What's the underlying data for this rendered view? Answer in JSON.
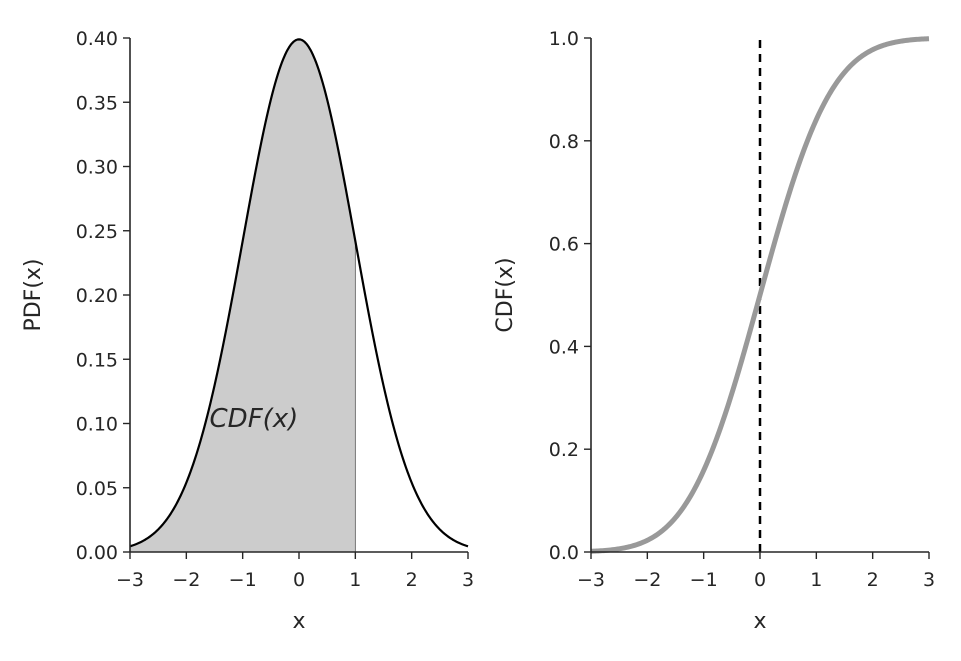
{
  "chart_data": [
    {
      "type": "area",
      "title": "",
      "xlabel": "x",
      "ylabel": "PDF(x)",
      "xlim": [
        -3,
        3
      ],
      "ylim": [
        0,
        0.4
      ],
      "xticks": [
        -3,
        -2,
        -1,
        0,
        1,
        2,
        3
      ],
      "xtick_labels": [
        "−3",
        "−2",
        "−1",
        "0",
        "1",
        "2",
        "3"
      ],
      "yticks": [
        0,
        0.05,
        0.1,
        0.15,
        0.2,
        0.25,
        0.3,
        0.35,
        0.4
      ],
      "ytick_labels": [
        "0.00",
        "0.05",
        "0.10",
        "0.15",
        "0.20",
        "0.25",
        "0.30",
        "0.35",
        "0.40"
      ],
      "grid": false,
      "series": [
        {
          "x": [
            -3,
            -2.5,
            -2,
            -1.5,
            -1,
            -0.5,
            0,
            0.5,
            1,
            1.5,
            2,
            2.5,
            3
          ],
          "y": [
            0.0044,
            0.0175,
            0.054,
            0.1295,
            0.242,
            0.3521,
            0.3989,
            0.3521,
            0.242,
            0.1295,
            0.054,
            0.0175,
            0.0044
          ],
          "color": "#000000"
        }
      ],
      "shaded_region": {
        "x_from": -3,
        "x_to": 1,
        "color": "#cccccc"
      },
      "annotation": {
        "text": "CDF(x)",
        "x": -0.8,
        "y": 0.105
      }
    },
    {
      "type": "line",
      "title": "",
      "xlabel": "x",
      "ylabel": "CDF(x)",
      "xlim": [
        -3,
        3
      ],
      "ylim": [
        0,
        1
      ],
      "xticks": [
        -3,
        -2,
        -1,
        0,
        1,
        2,
        3
      ],
      "xtick_labels": [
        "−3",
        "−2",
        "−1",
        "0",
        "1",
        "2",
        "3"
      ],
      "yticks": [
        0,
        0.2,
        0.4,
        0.6,
        0.8,
        1.0
      ],
      "ytick_labels": [
        "0.0",
        "0.2",
        "0.4",
        "0.6",
        "0.8",
        "1.0"
      ],
      "grid": false,
      "series": [
        {
          "x": [
            -3,
            -2.5,
            -2,
            -1.5,
            -1,
            -0.5,
            0,
            0.5,
            1,
            1.5,
            2,
            2.5,
            3
          ],
          "y": [
            0.0013,
            0.0062,
            0.0228,
            0.0668,
            0.1587,
            0.3085,
            0.5,
            0.6915,
            0.8413,
            0.9332,
            0.9772,
            0.9938,
            0.9987
          ],
          "color": "#999999"
        }
      ],
      "vertical_line": {
        "x": 0,
        "style": "dashed",
        "color": "#000000"
      }
    }
  ]
}
